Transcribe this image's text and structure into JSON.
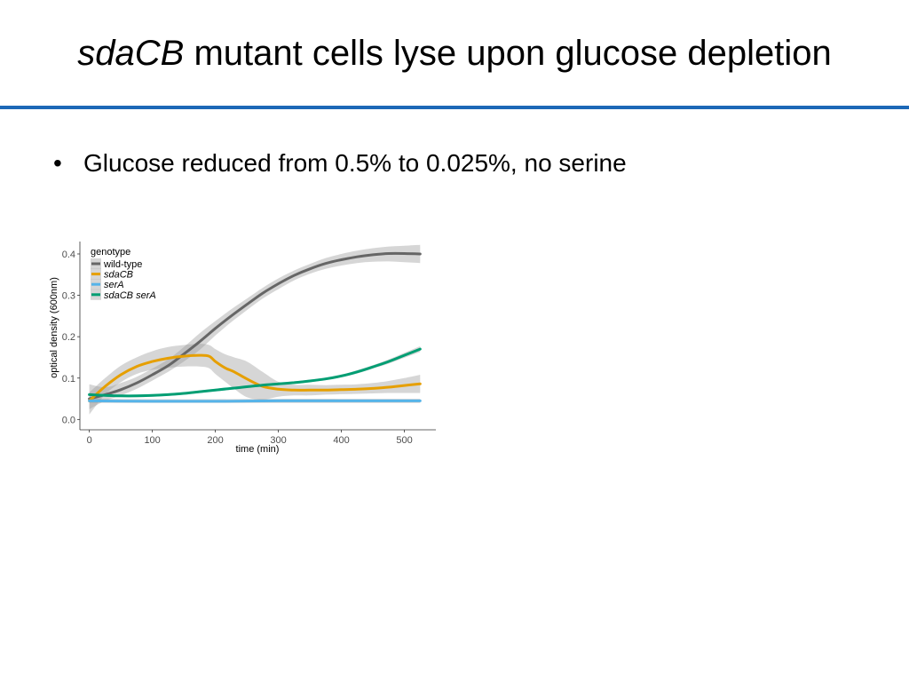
{
  "slide": {
    "title_italic": "sdaCB",
    "title_rest": " mutant cells lyse upon glucose depletion",
    "bullet_symbol": "•",
    "bullet": "Glucose reduced from 0.5% to 0.025%, no serine"
  },
  "chart_data": {
    "type": "line",
    "title": "",
    "xlabel": "time (min)",
    "ylabel": "optical density (600nm)",
    "xlim": [
      -15,
      550
    ],
    "ylim": [
      -0.025,
      0.43
    ],
    "xticks": [
      0,
      100,
      200,
      300,
      400,
      500
    ],
    "yticks": [
      0.0,
      0.1,
      0.2,
      0.3,
      0.4
    ],
    "xtick_labels": [
      "0",
      "100",
      "200",
      "300",
      "400",
      "500"
    ],
    "ytick_labels": [
      "0.0",
      "0.1",
      "0.2",
      "0.3",
      "0.4"
    ],
    "grid": false,
    "legend": {
      "title": "genotype",
      "position": "top-left",
      "entries": [
        {
          "label": "wild-type",
          "italic": false
        },
        {
          "label": "sdaCB",
          "italic": true
        },
        {
          "label": "serA",
          "italic": true
        },
        {
          "label": "sdaCB serA",
          "italic": true
        }
      ]
    },
    "series": [
      {
        "name": "wild-type",
        "color": "#666666",
        "x": [
          0,
          25,
          50,
          75,
          100,
          125,
          150,
          175,
          200,
          225,
          250,
          275,
          300,
          325,
          350,
          375,
          400,
          425,
          450,
          475,
          500,
          525
        ],
        "y": [
          0.05,
          0.06,
          0.072,
          0.088,
          0.108,
          0.13,
          0.158,
          0.188,
          0.22,
          0.25,
          0.278,
          0.305,
          0.328,
          0.348,
          0.364,
          0.377,
          0.386,
          0.393,
          0.398,
          0.401,
          0.401,
          0.4
        ],
        "ci_lower": [
          0.025,
          0.045,
          0.058,
          0.074,
          0.094,
          0.115,
          0.14,
          0.168,
          0.203,
          0.235,
          0.264,
          0.292,
          0.315,
          0.336,
          0.352,
          0.364,
          0.372,
          0.378,
          0.381,
          0.382,
          0.38,
          0.378
        ],
        "ci_upper": [
          0.085,
          0.078,
          0.088,
          0.103,
          0.123,
          0.145,
          0.175,
          0.208,
          0.238,
          0.266,
          0.292,
          0.318,
          0.341,
          0.36,
          0.376,
          0.39,
          0.4,
          0.408,
          0.414,
          0.418,
          0.42,
          0.422
        ]
      },
      {
        "name": "sdaCB",
        "color": "#e69f00",
        "x": [
          0,
          25,
          50,
          75,
          100,
          125,
          150,
          175,
          190,
          200,
          215,
          230,
          250,
          275,
          300,
          325,
          350,
          375,
          400,
          425,
          450,
          475,
          500,
          525
        ],
        "y": [
          0.045,
          0.08,
          0.108,
          0.128,
          0.14,
          0.148,
          0.153,
          0.155,
          0.153,
          0.14,
          0.125,
          0.115,
          0.098,
          0.08,
          0.073,
          0.071,
          0.071,
          0.071,
          0.072,
          0.073,
          0.075,
          0.078,
          0.082,
          0.086
        ],
        "ci_lower": [
          0.012,
          0.06,
          0.09,
          0.11,
          0.12,
          0.125,
          0.128,
          0.128,
          0.124,
          0.11,
          0.092,
          0.074,
          0.054,
          0.048,
          0.055,
          0.058,
          0.058,
          0.06,
          0.061,
          0.062,
          0.063,
          0.064,
          0.064,
          0.064
        ],
        "ci_upper": [
          0.065,
          0.1,
          0.13,
          0.15,
          0.165,
          0.175,
          0.18,
          0.183,
          0.18,
          0.17,
          0.158,
          0.15,
          0.14,
          0.115,
          0.091,
          0.084,
          0.084,
          0.083,
          0.084,
          0.085,
          0.088,
          0.093,
          0.1,
          0.108
        ]
      },
      {
        "name": "serA",
        "color": "#56b4e9",
        "x": [
          0,
          100,
          200,
          300,
          400,
          525
        ],
        "y": [
          0.045,
          0.044,
          0.044,
          0.045,
          0.045,
          0.045
        ],
        "ci_lower": [
          0.04,
          0.04,
          0.04,
          0.04,
          0.04,
          0.04
        ],
        "ci_upper": [
          0.05,
          0.049,
          0.049,
          0.05,
          0.05,
          0.05
        ]
      },
      {
        "name": "sdaCB serA",
        "color": "#009e73",
        "x": [
          0,
          25,
          50,
          75,
          100,
          125,
          150,
          175,
          200,
          225,
          250,
          275,
          300,
          325,
          350,
          375,
          400,
          425,
          450,
          475,
          500,
          525
        ],
        "y": [
          0.06,
          0.058,
          0.057,
          0.057,
          0.058,
          0.06,
          0.063,
          0.067,
          0.071,
          0.075,
          0.079,
          0.083,
          0.086,
          0.089,
          0.093,
          0.098,
          0.105,
          0.115,
          0.127,
          0.14,
          0.155,
          0.17
        ],
        "ci_lower": [
          0.056,
          0.055,
          0.054,
          0.054,
          0.055,
          0.057,
          0.06,
          0.064,
          0.068,
          0.072,
          0.076,
          0.08,
          0.083,
          0.086,
          0.09,
          0.095,
          0.102,
          0.111,
          0.123,
          0.135,
          0.149,
          0.163
        ],
        "ci_upper": [
          0.064,
          0.061,
          0.06,
          0.06,
          0.061,
          0.063,
          0.066,
          0.07,
          0.074,
          0.078,
          0.082,
          0.086,
          0.089,
          0.092,
          0.096,
          0.101,
          0.108,
          0.119,
          0.131,
          0.145,
          0.161,
          0.177
        ]
      }
    ]
  }
}
